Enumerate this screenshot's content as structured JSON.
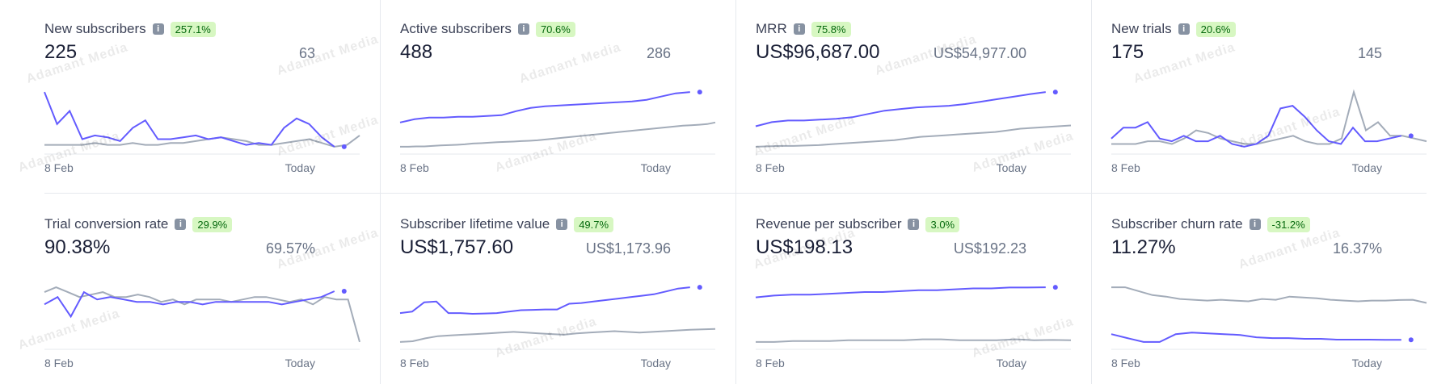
{
  "colors": {
    "current": "#635bff",
    "previous": "#a3acb9",
    "badge_bg": "#d7f7c2",
    "badge_fg": "#05690d"
  },
  "watermark": "Adamant Media",
  "cards": [
    {
      "title": "New subscribers",
      "badge": "257.1%",
      "value": "225",
      "previous_value": "63",
      "x_start": "8 Feb",
      "x_end": "Today",
      "chart_data": {
        "type": "line",
        "series": [
          {
            "values": [
              30,
              13,
              20,
              5,
              7,
              6,
              4,
              11,
              15,
              5,
              5,
              6,
              7,
              5,
              6,
              4,
              2,
              3,
              2,
              11,
              16,
              13,
              6,
              1
            ]
          },
          {
            "values": [
              2,
              2,
              2,
              2,
              3,
              2,
              2,
              3,
              2,
              2,
              3,
              3,
              4,
              5,
              6,
              5,
              4,
              2,
              2,
              3,
              4,
              5,
              3,
              1,
              2,
              7
            ]
          }
        ]
      }
    },
    {
      "title": "Active subscribers",
      "badge": "70.6%",
      "value": "488",
      "previous_value": "286",
      "x_start": "8 Feb",
      "x_end": "Today",
      "chart_data": {
        "type": "line",
        "series": [
          {
            "values": [
              300,
              320,
              330,
              330,
              335,
              335,
              340,
              345,
              370,
              390,
              400,
              405,
              410,
              415,
              420,
              425,
              430,
              440,
              460,
              480,
              488
            ]
          },
          {
            "values": [
              150,
              150,
              152,
              152,
              155,
              158,
              160,
              162,
              165,
              170,
              172,
              175,
              178,
              180,
              182,
              185,
              187,
              190,
              195,
              200,
              205,
              210,
              215,
              220,
              225,
              230,
              235,
              240,
              245,
              250,
              255,
              260,
              265,
              270,
              275,
              280,
              283,
              286,
              290,
              300
            ]
          }
        ]
      }
    },
    {
      "title": "MRR",
      "badge": "75.8%",
      "value": "US$96,687.00",
      "previous_value": "US$54,977.00",
      "x_start": "8 Feb",
      "x_end": "Today",
      "chart_data": {
        "type": "line",
        "series": [
          {
            "values": [
              55000,
              60000,
              62000,
              62000,
              63000,
              64000,
              66000,
              70000,
              74000,
              76000,
              78000,
              79000,
              80000,
              82000,
              85000,
              88000,
              91000,
              94000,
              96687
            ]
          },
          {
            "values": [
              30000,
              30500,
              31000,
              31000,
              31500,
              32000,
              33000,
              34000,
              35000,
              36000,
              37000,
              38000,
              40000,
              42000,
              43000,
              44000,
              45000,
              46000,
              47000,
              48000,
              50000,
              52000,
              53000,
              54000,
              54977,
              56000
            ]
          }
        ]
      }
    },
    {
      "title": "New trials",
      "badge": "20.6%",
      "value": "175",
      "previous_value": "145",
      "x_start": "8 Feb",
      "x_end": "Today",
      "chart_data": {
        "type": "line",
        "series": [
          {
            "values": [
              3,
              7,
              7,
              9,
              3,
              2,
              4,
              2,
              2,
              4,
              1,
              0,
              1,
              4,
              14,
              15,
              11,
              6,
              2,
              1,
              7,
              2,
              2,
              3,
              4
            ]
          },
          {
            "values": [
              1,
              1,
              1,
              2,
              2,
              1,
              3,
              6,
              5,
              3,
              2,
              1,
              1,
              2,
              3,
              4,
              2,
              1,
              1,
              3,
              20,
              6,
              9,
              4,
              4,
              3,
              2
            ]
          }
        ]
      }
    },
    {
      "title": "Trial conversion rate",
      "badge": "29.9%",
      "value": "90.38%",
      "previous_value": "69.57%",
      "x_start": "8 Feb",
      "x_end": "Today",
      "chart_data": {
        "type": "line",
        "series": [
          {
            "values": [
              85,
              88,
              80,
              90,
              87,
              88,
              87,
              86,
              86,
              85,
              86,
              86,
              85,
              86,
              86,
              86,
              86,
              86,
              85,
              86,
              87,
              88,
              90.38
            ]
          },
          {
            "values": [
              90,
              92,
              90,
              88,
              89,
              90,
              88,
              88,
              89,
              88,
              86,
              87,
              85,
              87,
              87,
              87,
              86,
              87,
              88,
              88,
              87,
              86,
              87,
              85,
              88,
              87,
              87,
              69.57
            ]
          }
        ]
      }
    },
    {
      "title": "Subscriber lifetime value",
      "badge": "49.7%",
      "value": "US$1,757.60",
      "previous_value": "US$1,173.96",
      "x_start": "8 Feb",
      "x_end": "Today",
      "chart_data": {
        "type": "line",
        "series": [
          {
            "values": [
              1400,
              1420,
              1550,
              1560,
              1400,
              1400,
              1390,
              1395,
              1400,
              1420,
              1440,
              1445,
              1450,
              1450,
              1530,
              1540,
              1560,
              1580,
              1600,
              1620,
              1640,
              1660,
              1700,
              1740,
              1757.6
            ]
          },
          {
            "values": [
              1000,
              1010,
              1050,
              1080,
              1090,
              1100,
              1110,
              1120,
              1130,
              1140,
              1130,
              1120,
              1110,
              1100,
              1120,
              1130,
              1140,
              1150,
              1140,
              1130,
              1140,
              1150,
              1160,
              1170,
              1173.96,
              1180
            ]
          }
        ]
      }
    },
    {
      "title": "Revenue per subscriber",
      "badge": "3.0%",
      "value": "US$198.13",
      "previous_value": "US$192.23",
      "x_start": "8 Feb",
      "x_end": "Today",
      "chart_data": {
        "type": "line",
        "series": [
          {
            "values": [
              197.0,
              197.2,
              197.3,
              197.3,
              197.4,
              197.5,
              197.6,
              197.6,
              197.7,
              197.8,
              197.8,
              197.9,
              198.0,
              198.0,
              198.1,
              198.1,
              198.13
            ]
          },
          {
            "values": [
              192.0,
              192.0,
              192.1,
              192.1,
              192.1,
              192.2,
              192.2,
              192.2,
              192.2,
              192.3,
              192.3,
              192.2,
              192.2,
              192.2,
              192.3,
              192.2,
              192.23,
              192.2
            ]
          }
        ]
      }
    },
    {
      "title": "Subscriber churn rate",
      "badge": "-31.2%",
      "value": "11.27%",
      "previous_value": "16.37%",
      "x_start": "8 Feb",
      "x_end": "Today",
      "chart_data": {
        "type": "line",
        "series": [
          {
            "values": [
              12.0,
              11.5,
              11.0,
              11.0,
              12.0,
              12.2,
              12.1,
              12.0,
              11.9,
              11.6,
              11.5,
              11.5,
              11.4,
              11.4,
              11.3,
              11.3,
              11.3,
              11.27,
              11.27
            ]
          },
          {
            "values": [
              18.0,
              18.0,
              17.5,
              17.0,
              16.8,
              16.5,
              16.4,
              16.3,
              16.4,
              16.3,
              16.2,
              16.5,
              16.4,
              16.8,
              16.7,
              16.6,
              16.4,
              16.3,
              16.2,
              16.3,
              16.3,
              16.37,
              16.4,
              16.0
            ]
          }
        ]
      }
    }
  ]
}
